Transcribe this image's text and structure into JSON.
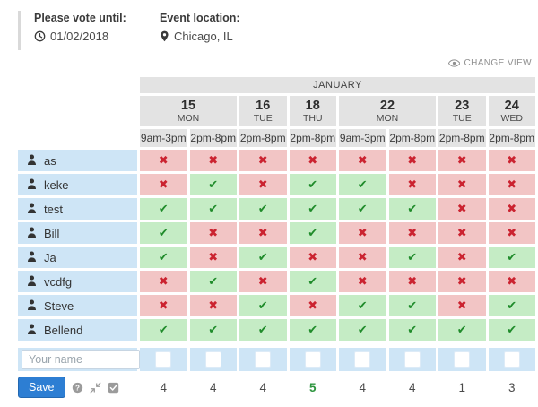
{
  "header": {
    "vote_until_label": "Please vote until:",
    "vote_until_date": "01/02/2018",
    "location_label": "Event location:",
    "location_value": "Chicago, IL",
    "change_view_label": "CHANGE VIEW"
  },
  "table": {
    "month": "JANUARY",
    "dates": [
      {
        "day": "15",
        "weekday": "MON",
        "span": 2
      },
      {
        "day": "16",
        "weekday": "TUE",
        "span": 1
      },
      {
        "day": "18",
        "weekday": "THU",
        "span": 1
      },
      {
        "day": "22",
        "weekday": "MON",
        "span": 2
      },
      {
        "day": "23",
        "weekday": "TUE",
        "span": 1
      },
      {
        "day": "24",
        "weekday": "WED",
        "span": 1
      }
    ],
    "time_slots": [
      "9am-3pm",
      "2pm-8pm",
      "2pm-8pm",
      "2pm-8pm",
      "9am-3pm",
      "2pm-8pm",
      "2pm-8pm",
      "2pm-8pm"
    ],
    "participants": [
      {
        "name": "as",
        "votes": [
          "no",
          "no",
          "no",
          "no",
          "no",
          "no",
          "no",
          "no"
        ]
      },
      {
        "name": "keke",
        "votes": [
          "no",
          "yes",
          "no",
          "yes",
          "yes",
          "no",
          "no",
          "no"
        ]
      },
      {
        "name": "test",
        "votes": [
          "yes",
          "yes",
          "yes",
          "yes",
          "yes",
          "yes",
          "no",
          "no"
        ]
      },
      {
        "name": "Bill",
        "votes": [
          "yes",
          "no",
          "no",
          "yes",
          "no",
          "no",
          "no",
          "no"
        ]
      },
      {
        "name": "Ja",
        "votes": [
          "yes",
          "no",
          "yes",
          "no",
          "no",
          "yes",
          "no",
          "yes"
        ]
      },
      {
        "name": "vcdfg",
        "votes": [
          "no",
          "yes",
          "no",
          "yes",
          "no",
          "no",
          "no",
          "no"
        ]
      },
      {
        "name": "Steve",
        "votes": [
          "no",
          "no",
          "yes",
          "no",
          "yes",
          "yes",
          "no",
          "yes"
        ]
      },
      {
        "name": "Bellend",
        "votes": [
          "yes",
          "yes",
          "yes",
          "yes",
          "yes",
          "yes",
          "yes",
          "yes"
        ]
      }
    ],
    "totals": [
      4,
      4,
      4,
      5,
      4,
      4,
      1,
      3
    ],
    "best_total_index": 3
  },
  "form": {
    "name_placeholder": "Your name",
    "save_label": "Save"
  },
  "glyphs": {
    "check": "✔",
    "cross": "✖"
  },
  "colors": {
    "accent_blue": "#2d7ed3",
    "yes_bg": "#c5ecc5",
    "yes_mark": "#1f8b2a",
    "no_bg": "#f2c5c5",
    "no_mark": "#cb2330",
    "name_bg": "#cee5f6",
    "header_cell_bg": "#e3e3e3",
    "best_total": "#2f9640"
  }
}
